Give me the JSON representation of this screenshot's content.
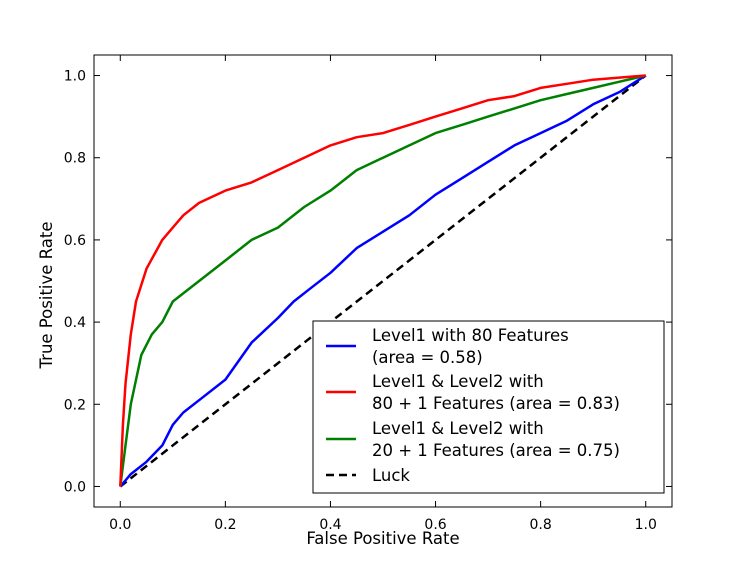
{
  "chart_data": {
    "type": "line",
    "title": "",
    "xlabel": "False Positive Rate",
    "ylabel": "True Positive Rate",
    "xlim": [
      -0.05,
      1.05
    ],
    "ylim": [
      -0.05,
      1.05
    ],
    "x_ticks": [
      "0.0",
      "0.2",
      "0.4",
      "0.6",
      "0.8",
      "1.0"
    ],
    "y_ticks": [
      "0.0",
      "0.2",
      "0.4",
      "0.6",
      "0.8",
      "1.0"
    ],
    "grid": false,
    "legend_position": "lower-right",
    "series": [
      {
        "name": "level1-80",
        "legend_lines": [
          "Level1 with 80 Features",
          "(area = 0.58)"
        ],
        "color": "#0000ff",
        "style": "solid",
        "points": [
          [
            0,
            0
          ],
          [
            0.02,
            0.03
          ],
          [
            0.05,
            0.06
          ],
          [
            0.08,
            0.1
          ],
          [
            0.1,
            0.15
          ],
          [
            0.12,
            0.18
          ],
          [
            0.15,
            0.21
          ],
          [
            0.2,
            0.26
          ],
          [
            0.25,
            0.35
          ],
          [
            0.3,
            0.41
          ],
          [
            0.33,
            0.45
          ],
          [
            0.36,
            0.48
          ],
          [
            0.4,
            0.52
          ],
          [
            0.45,
            0.58
          ],
          [
            0.5,
            0.62
          ],
          [
            0.55,
            0.66
          ],
          [
            0.6,
            0.71
          ],
          [
            0.65,
            0.75
          ],
          [
            0.7,
            0.79
          ],
          [
            0.75,
            0.83
          ],
          [
            0.8,
            0.86
          ],
          [
            0.85,
            0.89
          ],
          [
            0.9,
            0.93
          ],
          [
            0.95,
            0.96
          ],
          [
            1,
            1
          ]
        ]
      },
      {
        "name": "level1-level2-80",
        "legend_lines": [
          "Level1 & Level2 with",
          "80 + 1 Features (area = 0.83)"
        ],
        "color": "#ff0000",
        "style": "solid",
        "points": [
          [
            0,
            0
          ],
          [
            0.005,
            0.15
          ],
          [
            0.01,
            0.25
          ],
          [
            0.02,
            0.37
          ],
          [
            0.03,
            0.45
          ],
          [
            0.05,
            0.53
          ],
          [
            0.08,
            0.6
          ],
          [
            0.1,
            0.63
          ],
          [
            0.12,
            0.66
          ],
          [
            0.15,
            0.69
          ],
          [
            0.2,
            0.72
          ],
          [
            0.25,
            0.74
          ],
          [
            0.3,
            0.77
          ],
          [
            0.35,
            0.8
          ],
          [
            0.4,
            0.83
          ],
          [
            0.45,
            0.85
          ],
          [
            0.5,
            0.86
          ],
          [
            0.55,
            0.88
          ],
          [
            0.6,
            0.9
          ],
          [
            0.65,
            0.92
          ],
          [
            0.7,
            0.94
          ],
          [
            0.75,
            0.95
          ],
          [
            0.8,
            0.97
          ],
          [
            0.85,
            0.98
          ],
          [
            0.9,
            0.99
          ],
          [
            1,
            1
          ]
        ]
      },
      {
        "name": "level1-level2-20",
        "legend_lines": [
          "Level1 & Level2 with",
          "20 + 1 Features (area = 0.75)"
        ],
        "color": "#008000",
        "style": "solid",
        "points": [
          [
            0,
            0
          ],
          [
            0.01,
            0.1
          ],
          [
            0.02,
            0.2
          ],
          [
            0.04,
            0.32
          ],
          [
            0.06,
            0.37
          ],
          [
            0.08,
            0.4
          ],
          [
            0.1,
            0.45
          ],
          [
            0.15,
            0.5
          ],
          [
            0.2,
            0.55
          ],
          [
            0.25,
            0.6
          ],
          [
            0.3,
            0.63
          ],
          [
            0.35,
            0.68
          ],
          [
            0.4,
            0.72
          ],
          [
            0.45,
            0.77
          ],
          [
            0.5,
            0.8
          ],
          [
            0.55,
            0.83
          ],
          [
            0.6,
            0.86
          ],
          [
            0.65,
            0.88
          ],
          [
            0.7,
            0.9
          ],
          [
            0.75,
            0.92
          ],
          [
            0.8,
            0.94
          ],
          [
            0.85,
            0.955
          ],
          [
            0.9,
            0.97
          ],
          [
            0.95,
            0.985
          ],
          [
            1,
            1
          ]
        ]
      },
      {
        "name": "luck",
        "legend_lines": [
          "Luck"
        ],
        "color": "#000000",
        "style": "dashed",
        "points": [
          [
            0,
            0
          ],
          [
            1,
            1
          ]
        ]
      }
    ]
  }
}
